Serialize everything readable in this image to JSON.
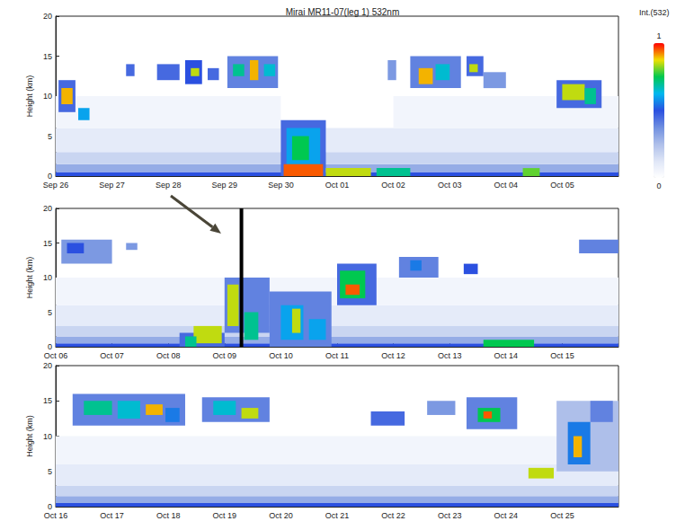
{
  "chart_data": [
    {
      "type": "heatmap",
      "title": "Mirai MR11-07(leg 1) 532nm",
      "ylabel": "Height (km)",
      "xlim": [
        269,
        279
      ],
      "xticks": [
        {
          "value": 269,
          "label": "Sep 26"
        },
        {
          "value": 270,
          "label": "Sep 27"
        },
        {
          "value": 271,
          "label": "Sep 28"
        },
        {
          "value": 272,
          "label": "Sep 29"
        },
        {
          "value": 273,
          "label": "Sep 30"
        },
        {
          "value": 274,
          "label": "Oct 01"
        },
        {
          "value": 275,
          "label": "Oct 02"
        },
        {
          "value": 276,
          "label": "Oct 03"
        },
        {
          "value": 277,
          "label": "Oct 04"
        },
        {
          "value": 278,
          "label": "Oct 05"
        }
      ],
      "ylim": [
        0,
        20
      ],
      "yticks": [
        0,
        5,
        10,
        15,
        20
      ],
      "cells": [
        [
          269,
          279,
          0,
          0.5,
          0.5
        ],
        [
          269,
          279,
          0.5,
          1.5,
          0.3
        ],
        [
          269,
          279,
          1.5,
          3,
          0.18
        ],
        [
          269,
          273,
          3,
          6,
          0.1
        ],
        [
          273.8,
          279,
          3,
          6,
          0.1
        ],
        [
          269,
          273,
          6,
          10,
          0.05
        ],
        [
          275,
          279,
          6,
          10,
          0.05
        ],
        [
          269.05,
          269.35,
          8,
          12,
          0.45
        ],
        [
          269.1,
          269.3,
          9,
          11,
          0.9
        ],
        [
          269.4,
          269.6,
          7,
          8.5,
          0.6
        ],
        [
          270.25,
          270.4,
          12.5,
          14,
          0.45
        ],
        [
          270.8,
          271.2,
          12,
          14,
          0.45
        ],
        [
          271.3,
          271.6,
          11.5,
          14.5,
          0.5
        ],
        [
          271.4,
          271.55,
          12.5,
          13.5,
          0.85
        ],
        [
          271.7,
          271.9,
          12,
          13.5,
          0.45
        ],
        [
          272.05,
          272.95,
          11,
          15,
          0.4
        ],
        [
          272.15,
          272.35,
          12.5,
          14,
          0.7
        ],
        [
          272.45,
          272.6,
          12,
          14.5,
          0.9
        ],
        [
          272.7,
          272.9,
          12.5,
          14,
          0.65
        ],
        [
          273.0,
          273.8,
          0,
          7,
          0.45
        ],
        [
          273.1,
          273.7,
          1,
          6,
          0.6
        ],
        [
          273.2,
          273.5,
          2,
          5,
          0.75
        ],
        [
          273.05,
          273.75,
          0,
          1.5,
          0.95
        ],
        [
          273.8,
          274.6,
          0,
          1,
          0.85
        ],
        [
          274.7,
          275.3,
          0,
          1,
          0.7
        ],
        [
          274.9,
          275.05,
          12,
          14.5,
          0.35
        ],
        [
          275.3,
          276.2,
          11,
          15,
          0.4
        ],
        [
          275.45,
          275.7,
          11.5,
          13.5,
          0.9
        ],
        [
          275.75,
          276.0,
          12,
          14,
          0.65
        ],
        [
          276.3,
          276.6,
          12.5,
          15,
          0.45
        ],
        [
          276.35,
          276.5,
          13,
          14,
          0.85
        ],
        [
          276.6,
          277.0,
          11,
          13,
          0.35
        ],
        [
          277.3,
          277.6,
          0,
          1,
          0.8
        ],
        [
          277.9,
          278.7,
          8.5,
          12,
          0.45
        ],
        [
          278.0,
          278.4,
          9.5,
          11.5,
          0.85
        ],
        [
          278.4,
          278.6,
          9,
          11,
          0.7
        ]
      ],
      "colorbar": {
        "label": "Int.(532)",
        "range": [
          0,
          1
        ],
        "ticks": [
          0,
          1
        ]
      }
    },
    {
      "type": "heatmap",
      "ylabel": "Height (km)",
      "xlim": [
        279,
        289
      ],
      "xticks": [
        {
          "value": 279,
          "label": "Oct 06"
        },
        {
          "value": 280,
          "label": "Oct 07"
        },
        {
          "value": 281,
          "label": "Oct 08"
        },
        {
          "value": 282,
          "label": "Oct 09"
        },
        {
          "value": 283,
          "label": "Oct 10"
        },
        {
          "value": 284,
          "label": "Oct 11"
        },
        {
          "value": 285,
          "label": "Oct 12"
        },
        {
          "value": 286,
          "label": "Oct 13"
        },
        {
          "value": 287,
          "label": "Oct 14"
        },
        {
          "value": 288,
          "label": "Oct 15"
        }
      ],
      "ylim": [
        0,
        20
      ],
      "yticks": [
        0,
        5,
        10,
        15,
        20
      ],
      "cells": [
        [
          279,
          289,
          0,
          0.5,
          0.5
        ],
        [
          279,
          289,
          0.5,
          1.5,
          0.3
        ],
        [
          279,
          289,
          1.5,
          3,
          0.18
        ],
        [
          279,
          289,
          3,
          6,
          0.1
        ],
        [
          279,
          289,
          6,
          10,
          0.05
        ],
        [
          279.1,
          280.0,
          12,
          15.5,
          0.35
        ],
        [
          279.2,
          279.5,
          13.5,
          15,
          0.5
        ],
        [
          280.25,
          280.45,
          14,
          15,
          0.35
        ],
        [
          281.2,
          282.0,
          0,
          2,
          0.45
        ],
        [
          281.45,
          281.95,
          0.5,
          3,
          0.85
        ],
        [
          281.3,
          281.5,
          0,
          1.5,
          0.7
        ],
        [
          282.0,
          282.8,
          2,
          10,
          0.4
        ],
        [
          282.05,
          282.25,
          3,
          9,
          0.85
        ],
        [
          282.35,
          282.6,
          1,
          5,
          0.7
        ],
        [
          282.8,
          283.9,
          0,
          8,
          0.4
        ],
        [
          283.0,
          283.4,
          1,
          6,
          0.6
        ],
        [
          283.2,
          283.35,
          2,
          5.5,
          0.85
        ],
        [
          283.5,
          283.8,
          1,
          4,
          0.6
        ],
        [
          284.0,
          284.7,
          6,
          12,
          0.45
        ],
        [
          284.05,
          284.5,
          7,
          11,
          0.75
        ],
        [
          284.15,
          284.4,
          7.5,
          9,
          0.95
        ],
        [
          285.1,
          285.8,
          10,
          13,
          0.4
        ],
        [
          285.3,
          285.5,
          11,
          12.5,
          0.55
        ],
        [
          286.25,
          286.5,
          10.5,
          12,
          0.5
        ],
        [
          286.6,
          287.5,
          0,
          1,
          0.75
        ],
        [
          288.3,
          289,
          13.5,
          15.5,
          0.4
        ]
      ],
      "annotations": [
        {
          "type": "vline",
          "x": 282.3
        }
      ]
    },
    {
      "type": "heatmap",
      "ylabel": "Height (km)",
      "xlim": [
        289,
        299
      ],
      "xticks": [
        {
          "value": 289,
          "label": "Oct 16"
        },
        {
          "value": 290,
          "label": "Oct 17"
        },
        {
          "value": 291,
          "label": "Oct 18"
        },
        {
          "value": 292,
          "label": "Oct 19"
        },
        {
          "value": 293,
          "label": "Oct 20"
        },
        {
          "value": 294,
          "label": "Oct 21"
        },
        {
          "value": 295,
          "label": "Oct 22"
        },
        {
          "value": 296,
          "label": "Oct 23"
        },
        {
          "value": 297,
          "label": "Oct 24"
        },
        {
          "value": 298,
          "label": "Oct 25"
        }
      ],
      "ylim": [
        0,
        20
      ],
      "yticks": [
        0,
        5,
        10,
        15,
        20
      ],
      "cells": [
        [
          289,
          299,
          0,
          0.5,
          0.5
        ],
        [
          289,
          299,
          0.5,
          1.5,
          0.3
        ],
        [
          289,
          299,
          1.5,
          3,
          0.18
        ],
        [
          289,
          299,
          3,
          6,
          0.1
        ],
        [
          289,
          299,
          6,
          10,
          0.05
        ],
        [
          289.3,
          291.3,
          11.5,
          16,
          0.4
        ],
        [
          289.5,
          290.0,
          13,
          15,
          0.7
        ],
        [
          290.1,
          290.5,
          12.5,
          15,
          0.65
        ],
        [
          290.6,
          290.9,
          13,
          14.5,
          0.9
        ],
        [
          290.95,
          291.2,
          12,
          14,
          0.55
        ],
        [
          291.6,
          292.8,
          12,
          15.5,
          0.4
        ],
        [
          291.8,
          292.2,
          13,
          15,
          0.65
        ],
        [
          292.3,
          292.6,
          12.5,
          14,
          0.85
        ],
        [
          294.6,
          295.2,
          11.5,
          13.5,
          0.45
        ],
        [
          295.6,
          296.1,
          13,
          15,
          0.35
        ],
        [
          296.3,
          297.2,
          11,
          15.5,
          0.4
        ],
        [
          296.5,
          296.9,
          12,
          14,
          0.75
        ],
        [
          296.6,
          296.75,
          12.5,
          13.5,
          0.95
        ],
        [
          297.4,
          297.85,
          4,
          5.5,
          0.85
        ],
        [
          297.9,
          299,
          5,
          15,
          0.25
        ],
        [
          298.1,
          298.5,
          6,
          12,
          0.55
        ],
        [
          298.2,
          298.35,
          7,
          10,
          0.9
        ],
        [
          298.5,
          298.9,
          12,
          15,
          0.4
        ]
      ]
    }
  ]
}
